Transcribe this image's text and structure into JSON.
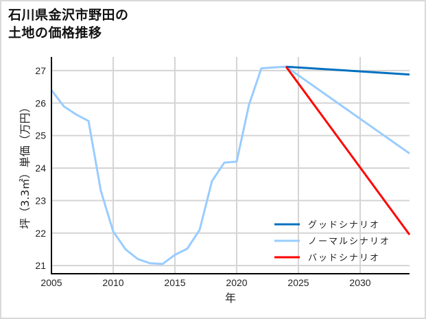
{
  "title": {
    "line1": "石川県金沢市野田の",
    "line2": "土地の価格推移"
  },
  "chart_data": {
    "type": "line",
    "title": "石川県金沢市野田の土地の価格推移",
    "xlabel": "年",
    "ylabel": "坪（3.3㎡）単価（万円）",
    "xlim": [
      2005,
      2034
    ],
    "ylim": [
      20.75,
      27.42
    ],
    "x_ticks": [
      2005,
      2010,
      2015,
      2020,
      2025,
      2030
    ],
    "y_ticks": [
      21,
      22,
      23,
      24,
      25,
      26,
      27
    ],
    "grid": true,
    "legend_position": "lower right",
    "series": [
      {
        "name": "ノーマルシナリオ (historical)",
        "color": "#99ccff",
        "x": [
          2005,
          2006,
          2007,
          2008,
          2009,
          2010,
          2011,
          2012,
          2013,
          2014,
          2015,
          2016,
          2017,
          2018,
          2019,
          2020,
          2021,
          2022,
          2023,
          2024
        ],
        "values": [
          26.4,
          25.9,
          25.65,
          25.45,
          23.3,
          22.05,
          21.5,
          21.2,
          21.07,
          21.05,
          21.33,
          21.52,
          22.1,
          23.6,
          24.17,
          24.2,
          25.95,
          27.07,
          27.1,
          27.12
        ]
      },
      {
        "name": "グッドシナリオ",
        "color": "#0070c0",
        "x": [
          2024,
          2034
        ],
        "values": [
          27.12,
          26.88
        ]
      },
      {
        "name": "ノーマルシナリオ",
        "color": "#99ccff",
        "x": [
          2024,
          2034
        ],
        "values": [
          27.12,
          24.45
        ]
      },
      {
        "name": "バッドシナリオ",
        "color": "#ff0000",
        "x": [
          2024,
          2034
        ],
        "values": [
          27.12,
          21.95
        ]
      }
    ]
  },
  "legend": [
    {
      "label": "グッドシナリオ",
      "color": "#0070c0"
    },
    {
      "label": "ノーマルシナリオ",
      "color": "#99ccff"
    },
    {
      "label": "バッドシナリオ",
      "color": "#ff0000"
    }
  ],
  "axes": {
    "xlabel": "年",
    "ylabel": "坪（3.3㎡）単価（万円）"
  }
}
